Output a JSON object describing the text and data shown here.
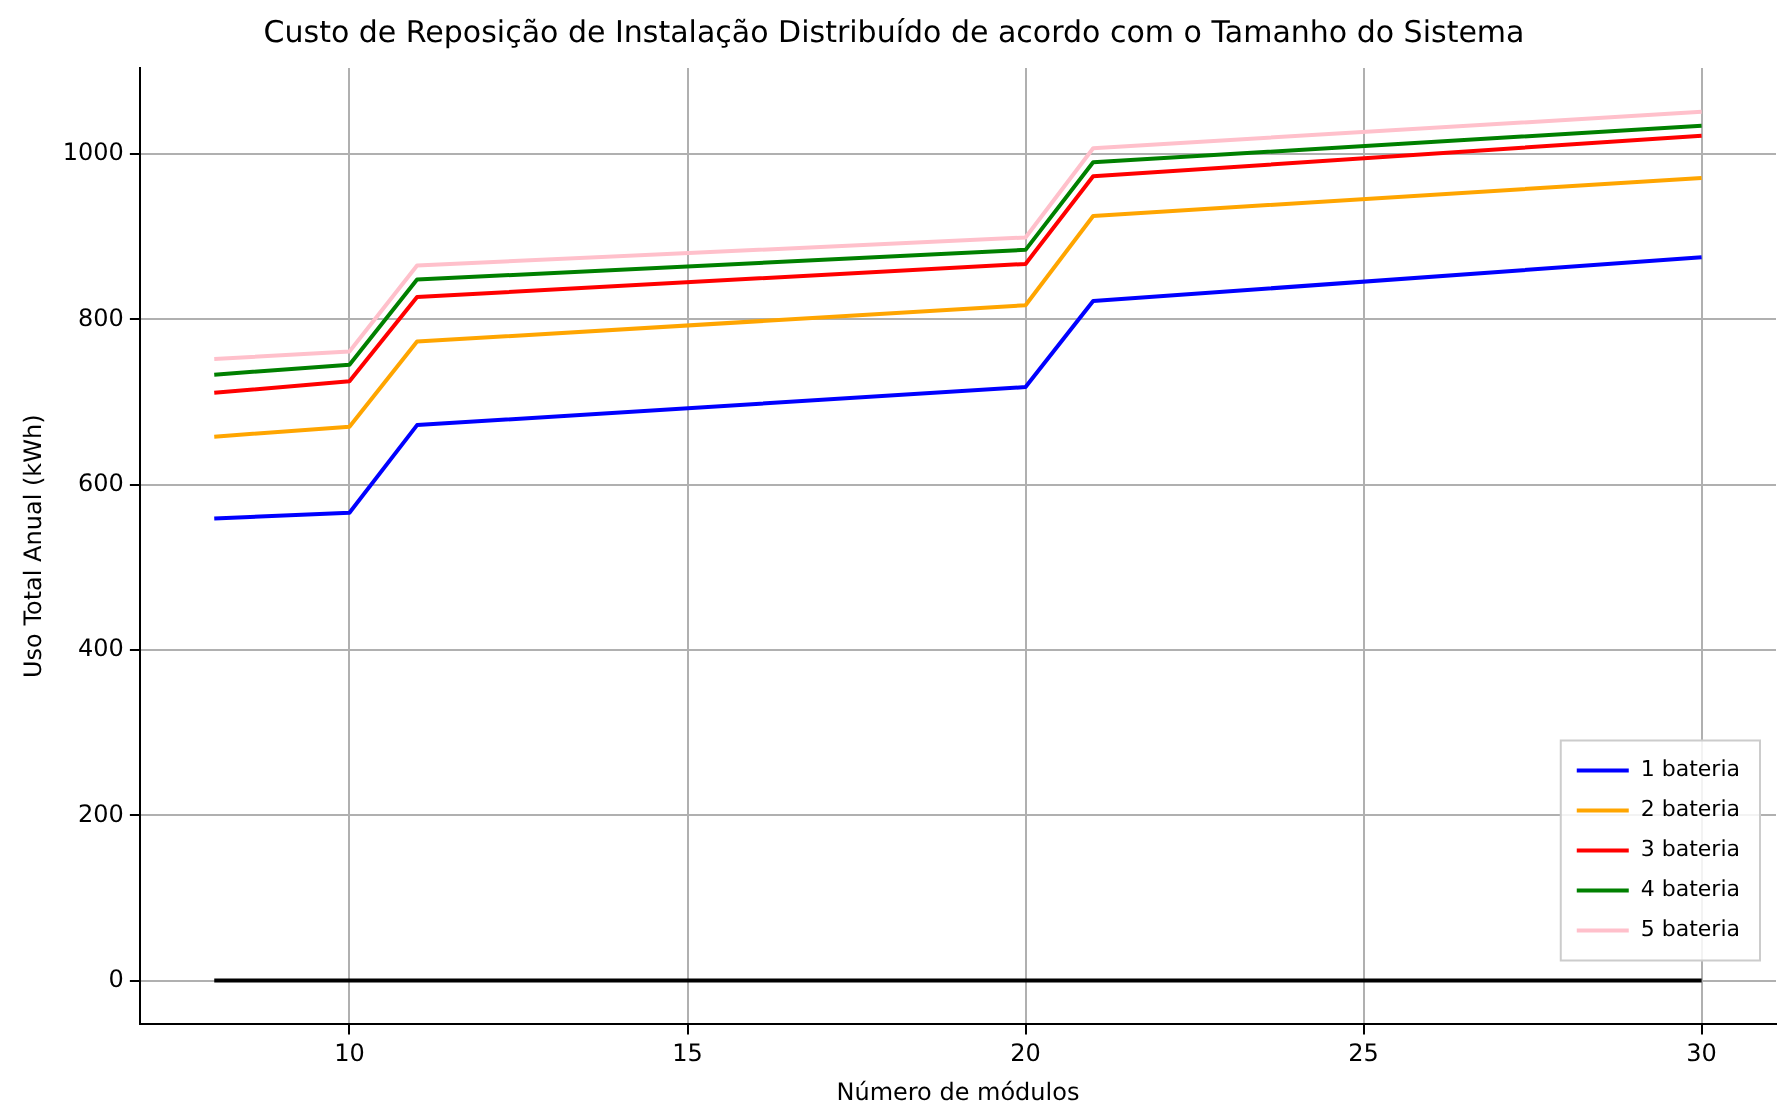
{
  "chart_data": {
    "type": "line",
    "title": "Custo de Reposição de Instalação Distribuído de acordo com o Tamanho do Sistema",
    "xlabel": "Número de módulos",
    "ylabel": "Uso Total Anual (kWh)",
    "x": [
      8,
      10,
      11,
      20,
      21,
      30
    ],
    "series": [
      {
        "name": "1 bateria",
        "color": "#0000ff",
        "values": [
          559,
          566,
          672,
          718,
          822,
          875
        ]
      },
      {
        "name": "2 bateria",
        "color": "#ffa500",
        "values": [
          658,
          670,
          773,
          817,
          925,
          971
        ]
      },
      {
        "name": "3 bateria",
        "color": "#ff0000",
        "values": [
          711,
          725,
          827,
          867,
          973,
          1022
        ]
      },
      {
        "name": "4 bateria",
        "color": "#008000",
        "values": [
          733,
          745,
          848,
          884,
          990,
          1034
        ]
      },
      {
        "name": "5 bateria",
        "color": "#ffc0cb",
        "values": [
          752,
          761,
          865,
          899,
          1007,
          1051
        ]
      },
      {
        "color": "#000000",
        "values": [
          0,
          0,
          0,
          0,
          0,
          0
        ]
      }
    ],
    "xlim": [
      6.9,
      31.1
    ],
    "xticks": [
      10,
      15,
      20,
      25,
      30
    ],
    "ylim": [
      -53,
      1104
    ],
    "yticks": [
      0,
      200,
      400,
      600,
      800,
      1000
    ],
    "grid": true,
    "legend": "bottom right"
  }
}
